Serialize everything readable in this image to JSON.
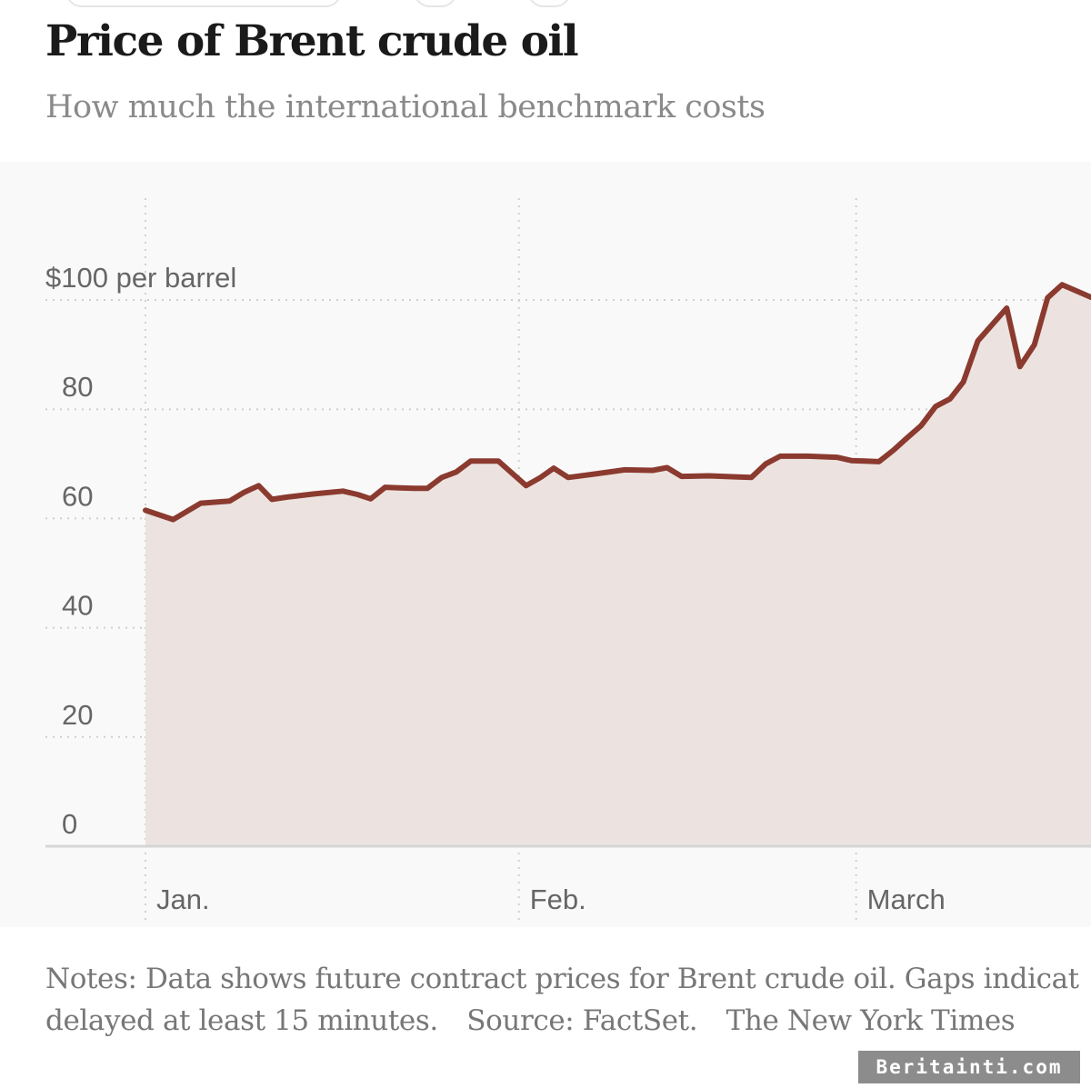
{
  "header": {
    "title": "Price of Brent crude oil",
    "subtitle": "How much the international benchmark costs"
  },
  "notes": {
    "line1": "Notes: Data shows future contract prices for Brent crude oil. Gaps indicat",
    "line2_text": "delayed at least 15 minutes.",
    "line2_source": "Source: FactSet.",
    "line2_credit": "The New York Times"
  },
  "watermark": "Beritainti.com",
  "colors": {
    "line": "#8b3a2f",
    "area": "#ece3e0",
    "grid": "#cfcfcf",
    "axis_text": "#666666",
    "panel": "#f9f9f9"
  },
  "chart_data": {
    "type": "area",
    "title": "Price of Brent crude oil",
    "subtitle": "How much the international benchmark costs",
    "ylabel": "$100 per barrel",
    "ylim": [
      0,
      100
    ],
    "yticks": [
      0,
      20,
      40,
      60,
      80,
      100
    ],
    "ytick_labels": [
      "0",
      "20",
      "40",
      "60",
      "80",
      "$100 per barrel"
    ],
    "xticks": [
      {
        "x": 0,
        "label": "Jan."
      },
      {
        "x": 31,
        "label": "Feb."
      },
      {
        "x": 59,
        "label": "March"
      }
    ],
    "xlim": [
      0,
      78.5
    ],
    "grid": true,
    "series": [
      {
        "x": [
          0,
          2.3,
          4.6,
          7.0,
          8.2,
          9.4,
          10.5,
          11.7,
          14.0,
          16.4,
          17.6,
          18.7,
          19.9,
          21.1,
          22.3,
          23.4,
          24.6,
          25.8,
          27.0,
          29.3,
          31.6,
          32.8,
          33.9,
          35.1,
          37.5,
          39.8,
          42.1,
          43.3,
          44.5,
          46.8,
          49.2,
          50.3,
          51.5,
          52.7,
          55.0,
          56.2,
          57.4,
          58.6,
          59.7,
          60.9,
          62.1,
          63.2,
          64.4,
          65.6,
          66.8,
          67.9,
          69.1,
          70.3,
          71.5,
          72.6,
          73.8,
          74.9,
          76.1,
          78.5
        ],
        "y": [
          61.5,
          59.8,
          62.8,
          63.2,
          64.8,
          66.0,
          63.5,
          63.9,
          64.5,
          65.0,
          64.4,
          63.6,
          65.7,
          65.6,
          65.5,
          65.5,
          67.5,
          68.5,
          70.5,
          70.5,
          66.0,
          67.5,
          69.2,
          67.5,
          68.2,
          68.9,
          68.8,
          69.3,
          67.7,
          67.8,
          67.6,
          67.5,
          70.0,
          71.4,
          71.4,
          71.3,
          71.2,
          70.6,
          70.5,
          70.4,
          72.5,
          74.7,
          77.0,
          80.5,
          81.9,
          85.0,
          92.5,
          95.5,
          98.5,
          87.8,
          91.8,
          100.4,
          102.8,
          100.5
        ]
      }
    ]
  }
}
